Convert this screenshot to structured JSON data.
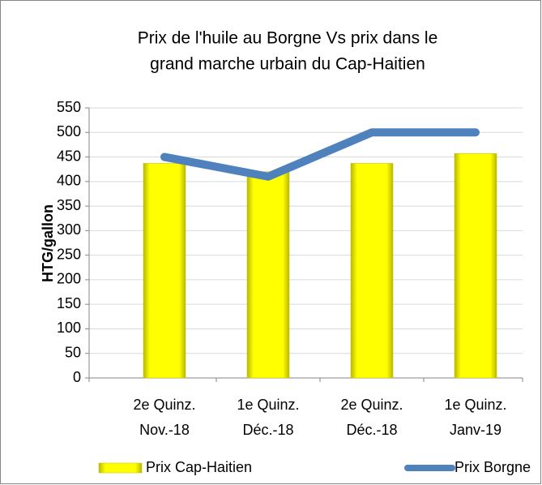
{
  "chart_data": {
    "type": "bar-line",
    "title": [
      "Prix de l'huile au Borgne Vs prix dans le",
      "grand marche urbain du Cap-Haitien"
    ],
    "y_label": "HTG/gallon",
    "categories": [
      [
        "2e Quinz.",
        "Nov.-18"
      ],
      [
        "1e Quinz.",
        "Déc.-18"
      ],
      [
        "2e Quinz.",
        "Déc.-18"
      ],
      [
        "1e Quinz.",
        "Janv-19"
      ]
    ],
    "series": [
      {
        "name": "Prix Cap-Haitien",
        "type": "bar",
        "color": "#ffff00",
        "values": [
          437,
          420,
          437,
          457
        ]
      },
      {
        "name": "Prix Borgne",
        "type": "line",
        "color": "#4f81bd",
        "values": [
          450,
          410,
          500,
          500
        ]
      }
    ],
    "ylim": [
      0,
      550
    ],
    "yticks": [
      0,
      50,
      100,
      150,
      200,
      250,
      300,
      350,
      400,
      450,
      500,
      550
    ],
    "grid": true,
    "legend": "bottom"
  }
}
